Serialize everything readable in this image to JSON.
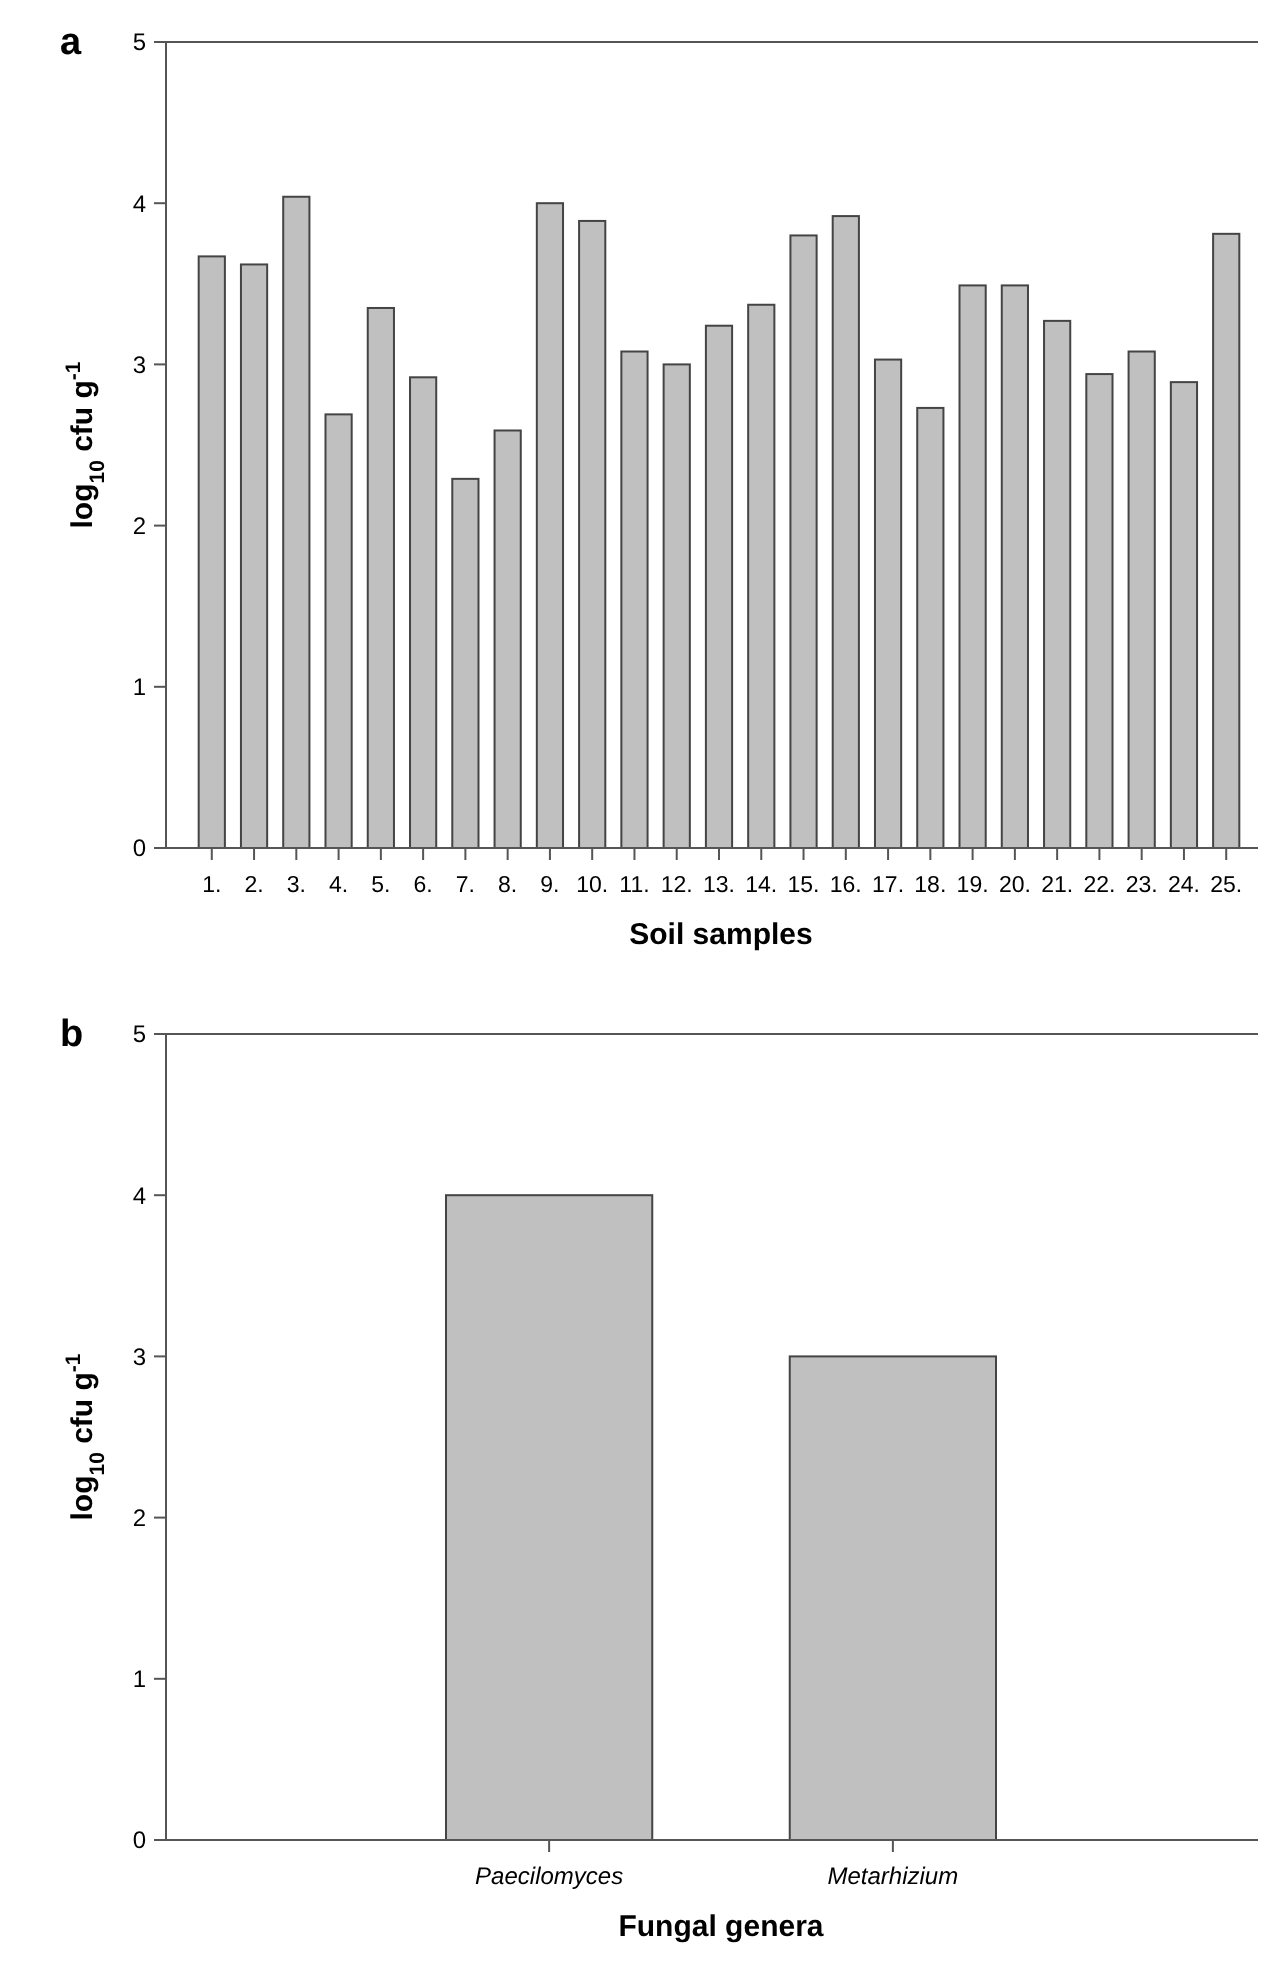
{
  "chart_data": [
    {
      "type": "bar",
      "title": "a",
      "xlabel": "Soil samples",
      "ylabel": "log$_{10}$ cfu g$^{-1}$",
      "categories": [
        "1.",
        "2.",
        "3.",
        "4.",
        "5.",
        "6.",
        "7.",
        "8.",
        "9.",
        "10.",
        "11.",
        "12.",
        "13.",
        "14.",
        "15.",
        "16.",
        "17.",
        "18.",
        "19.",
        "20.",
        "21.",
        "22.",
        "23.",
        "24.",
        "25."
      ],
      "values": [
        3.67,
        3.62,
        4.04,
        2.69,
        3.35,
        2.92,
        2.29,
        2.59,
        4.0,
        3.89,
        3.08,
        3.0,
        3.24,
        3.37,
        3.8,
        3.92,
        3.03,
        2.73,
        3.49,
        3.49,
        3.27,
        2.94,
        3.08,
        2.89,
        3.81
      ],
      "color": "#c0c0c0",
      "ylim": [
        0,
        5
      ],
      "yticks": [
        0,
        1,
        2,
        3,
        4,
        5
      ]
    },
    {
      "type": "bar",
      "title": "b",
      "xlabel": "Fungal genera",
      "ylabel": "log$_{10}$ cfu g$^{-1}$",
      "categories": [
        "Paecilomyces",
        "Metarhizium"
      ],
      "values": [
        4,
        3
      ],
      "color": "#c0c0c0",
      "ylim": [
        0,
        5
      ],
      "yticks": [
        0,
        1,
        2,
        3,
        4,
        5
      ]
    }
  ]
}
